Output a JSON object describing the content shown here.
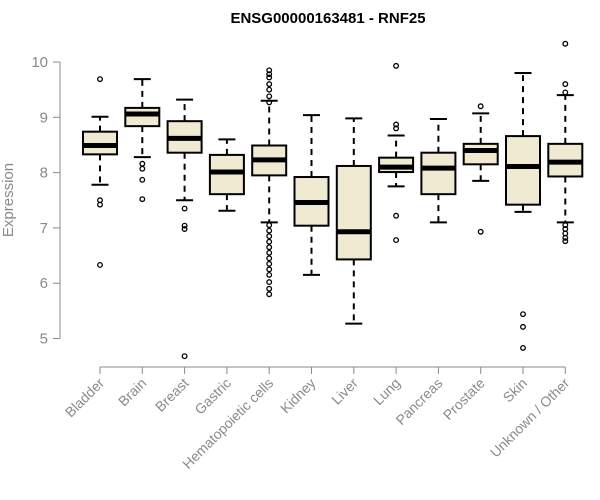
{
  "chart_data": {
    "type": "box",
    "title": "ENSG00000163481 - RNF25",
    "ylabel": "Expression",
    "ylim": [
      4.6,
      10.4
    ],
    "yticks": [
      5,
      6,
      7,
      8,
      9,
      10
    ],
    "categories": [
      "Bladder",
      "Brain",
      "Breast",
      "Gastric",
      "Hematopoietic cells",
      "Kidney",
      "Liver",
      "Lung",
      "Pancreas",
      "Prostate",
      "Skin",
      "Unknown / Other"
    ],
    "boxes": [
      {
        "whisker_low": 7.78,
        "q1": 8.33,
        "median": 8.49,
        "q3": 8.74,
        "whisker_high": 9.01,
        "outliers": [
          9.69,
          7.5,
          7.42,
          6.33
        ]
      },
      {
        "whisker_low": 8.28,
        "q1": 8.84,
        "median": 9.06,
        "q3": 9.17,
        "whisker_high": 9.69,
        "outliers": [
          8.16,
          8.07,
          7.87,
          7.52
        ]
      },
      {
        "whisker_low": 7.5,
        "q1": 8.36,
        "median": 8.62,
        "q3": 8.93,
        "whisker_high": 9.32,
        "outliers": [
          7.35,
          7.04,
          6.98,
          4.68
        ]
      },
      {
        "whisker_low": 7.31,
        "q1": 7.61,
        "median": 8.01,
        "q3": 8.32,
        "whisker_high": 8.6,
        "outliers": []
      },
      {
        "whisker_low": 7.1,
        "q1": 7.95,
        "median": 8.23,
        "q3": 8.49,
        "whisker_high": 9.3,
        "outliers": [
          9.85,
          9.78,
          9.72,
          9.6,
          9.5,
          9.38,
          9.27,
          7.05,
          6.95,
          6.85,
          6.75,
          6.65,
          6.55,
          6.45,
          6.35,
          6.25,
          6.15,
          6.02,
          5.9,
          5.8
        ]
      },
      {
        "whisker_low": 6.15,
        "q1": 7.04,
        "median": 7.46,
        "q3": 7.92,
        "whisker_high": 9.04,
        "outliers": []
      },
      {
        "whisker_low": 5.27,
        "q1": 6.43,
        "median": 6.93,
        "q3": 8.12,
        "whisker_high": 8.98,
        "outliers": []
      },
      {
        "whisker_low": 7.75,
        "q1": 8.01,
        "median": 8.1,
        "q3": 8.27,
        "whisker_high": 8.67,
        "outliers": [
          9.93,
          8.87,
          8.8,
          7.22,
          6.78
        ]
      },
      {
        "whisker_low": 7.1,
        "q1": 7.61,
        "median": 8.08,
        "q3": 8.36,
        "whisker_high": 8.97,
        "outliers": []
      },
      {
        "whisker_low": 7.85,
        "q1": 8.15,
        "median": 8.4,
        "q3": 8.52,
        "whisker_high": 9.07,
        "outliers": [
          9.2,
          6.93
        ]
      },
      {
        "whisker_low": 7.29,
        "q1": 7.42,
        "median": 8.11,
        "q3": 8.66,
        "whisker_high": 9.8,
        "outliers": [
          5.44,
          5.21,
          4.83
        ]
      },
      {
        "whisker_low": 7.1,
        "q1": 7.93,
        "median": 8.19,
        "q3": 8.52,
        "whisker_high": 9.4,
        "outliers": [
          10.33,
          9.6,
          9.45,
          7.05,
          6.98,
          6.9,
          6.82,
          6.76
        ]
      }
    ],
    "colors": {
      "box_fill": "#f0ead2",
      "stroke": "#000000",
      "axis": "#8a8a8a"
    }
  }
}
